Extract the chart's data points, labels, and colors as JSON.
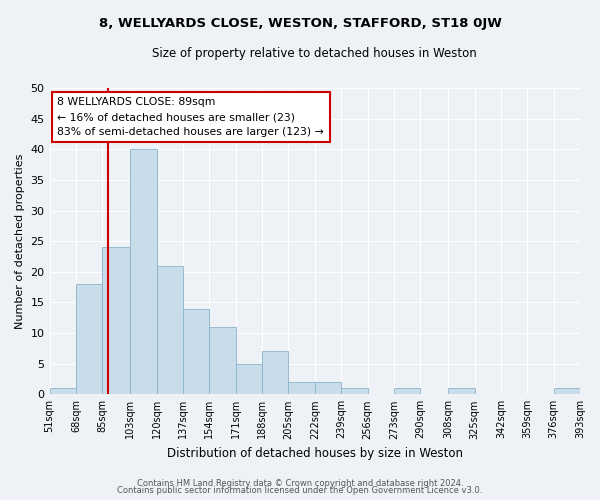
{
  "title1": "8, WELLYARDS CLOSE, WESTON, STAFFORD, ST18 0JW",
  "title2": "Size of property relative to detached houses in Weston",
  "xlabel": "Distribution of detached houses by size in Weston",
  "ylabel": "Number of detached properties",
  "bar_values": [
    1,
    18,
    24,
    40,
    21,
    14,
    11,
    5,
    7,
    2,
    2,
    1,
    0,
    1,
    0,
    1,
    0,
    0,
    0,
    1
  ],
  "bin_left_edges": [
    51,
    68,
    85,
    103,
    120,
    137,
    154,
    171,
    188,
    205,
    222,
    239,
    256,
    273,
    290,
    308,
    325,
    342,
    359,
    376
  ],
  "bin_widths": [
    17,
    17,
    18,
    17,
    17,
    17,
    17,
    17,
    17,
    17,
    17,
    17,
    17,
    17,
    18,
    17,
    17,
    17,
    17,
    17
  ],
  "tick_positions": [
    51,
    68,
    85,
    103,
    120,
    137,
    154,
    171,
    188,
    205,
    222,
    239,
    256,
    273,
    290,
    308,
    325,
    342,
    359,
    376,
    393
  ],
  "tick_labels": [
    "51sqm",
    "68sqm",
    "85sqm",
    "103sqm",
    "120sqm",
    "137sqm",
    "154sqm",
    "171sqm",
    "188sqm",
    "205sqm",
    "222sqm",
    "239sqm",
    "256sqm",
    "273sqm",
    "290sqm",
    "308sqm",
    "325sqm",
    "342sqm",
    "359sqm",
    "376sqm",
    "393sqm"
  ],
  "bar_color": "#c9dcea",
  "bar_edge_color": "#8ab4cc",
  "vline_x": 89,
  "vline_color": "#cc0000",
  "ylim": [
    0,
    50
  ],
  "yticks": [
    0,
    5,
    10,
    15,
    20,
    25,
    30,
    35,
    40,
    45,
    50
  ],
  "annotation_title": "8 WELLYARDS CLOSE: 89sqm",
  "annotation_line1": "← 16% of detached houses are smaller (23)",
  "annotation_line2": "83% of semi-detached houses are larger (123) →",
  "annotation_box_facecolor": "#ffffff",
  "annotation_box_edgecolor": "#cc0000",
  "footer1": "Contains HM Land Registry data © Crown copyright and database right 2024.",
  "footer2": "Contains public sector information licensed under the Open Government Licence v3.0.",
  "background_color": "#eef2f7",
  "grid_color": "#ffffff"
}
